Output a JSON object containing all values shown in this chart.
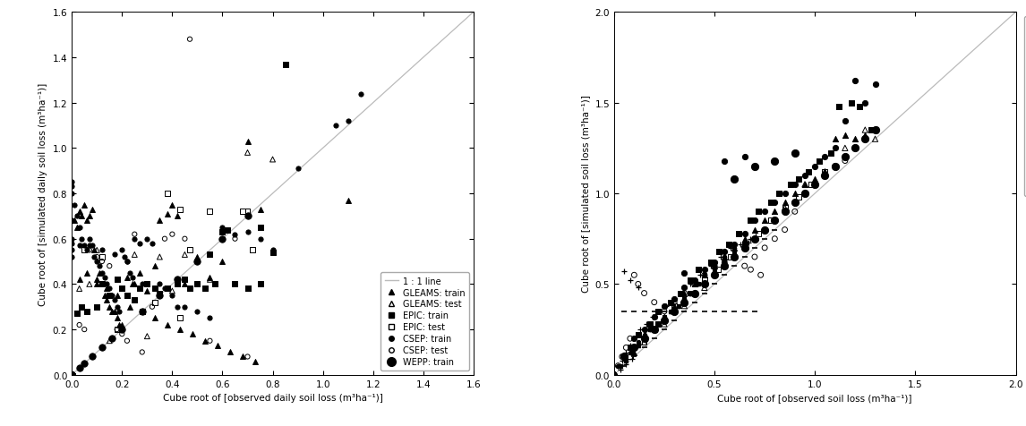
{
  "line_color": "#bbbbbb",
  "marker_color": "black",
  "bg_color": "white",
  "font_size": 7.5,
  "panel_a": {
    "xlabel": "Cube root of [observed daily soil loss (m³ha⁻¹)]",
    "ylabel": "Cube root of [simulated daily soil loss (m³ha⁻¹)]",
    "xlim": [
      0.0,
      1.6
    ],
    "ylim": [
      0.0,
      1.6
    ],
    "xticks": [
      0.0,
      0.2,
      0.4,
      0.6,
      0.8,
      1.0,
      1.2,
      1.4,
      1.6
    ],
    "yticks": [
      0.0,
      0.2,
      0.4,
      0.6,
      0.8,
      1.0,
      1.2,
      1.4,
      1.6
    ],
    "WEPP_train": {
      "x": [
        0.0,
        0.0,
        0.0,
        0.0,
        0.0,
        0.0,
        0.0,
        0.0,
        0.0,
        0.0,
        0.0,
        0.0,
        0.0,
        0.0,
        0.0,
        0.0,
        0.0,
        0.0,
        0.0,
        0.0,
        0.0,
        0.0,
        0.0,
        0.0,
        0.0,
        0.0,
        0.0,
        0.0,
        0.0,
        0.0,
        0.0,
        0.0,
        0.0,
        0.0,
        0.0,
        0.0,
        0.0,
        0.0,
        0.0,
        0.0,
        0.0,
        0.0,
        0.0,
        0.0,
        0.0,
        0.0,
        0.0,
        0.0,
        0.03,
        0.05,
        0.08,
        0.12,
        0.16,
        0.2,
        0.28,
        0.35,
        0.42,
        0.5,
        0.6,
        0.7
      ],
      "y": [
        0.0,
        0.0,
        0.0,
        0.0,
        0.0,
        0.0,
        0.0,
        0.0,
        0.0,
        0.0,
        0.0,
        0.0,
        0.0,
        0.0,
        0.0,
        0.0,
        0.0,
        0.0,
        0.0,
        0.0,
        0.0,
        0.0,
        0.0,
        0.0,
        0.0,
        0.0,
        0.0,
        0.0,
        0.0,
        0.0,
        0.0,
        0.0,
        0.0,
        0.0,
        0.0,
        0.0,
        0.0,
        0.0,
        0.0,
        0.0,
        0.0,
        0.0,
        0.0,
        0.0,
        0.0,
        0.0,
        0.0,
        0.0,
        0.03,
        0.05,
        0.08,
        0.12,
        0.16,
        0.2,
        0.28,
        0.35,
        0.42,
        0.5,
        0.6,
        0.7
      ]
    },
    "EPIC_train": {
      "x": [
        0.0,
        0.0,
        0.0,
        0.0,
        0.0,
        0.0,
        0.0,
        0.0,
        0.0,
        0.0,
        0.0,
        0.0,
        0.0,
        0.0,
        0.0,
        0.0,
        0.0,
        0.0,
        0.0,
        0.0,
        0.0,
        0.0,
        0.0,
        0.0,
        0.0,
        0.0,
        0.0,
        0.0,
        0.0,
        0.0,
        0.0,
        0.0,
        0.0,
        0.0,
        0.0,
        0.0,
        0.0,
        0.0,
        0.0,
        0.0,
        0.0,
        0.0,
        0.02,
        0.04,
        0.06,
        0.1,
        0.12,
        0.15,
        0.18,
        0.2,
        0.22,
        0.25,
        0.27,
        0.3,
        0.33,
        0.35,
        0.38,
        0.42,
        0.45,
        0.47,
        0.5,
        0.53,
        0.57,
        0.6,
        0.65,
        0.7,
        0.75,
        0.8,
        0.85,
        0.75,
        0.55,
        0.62,
        0.7
      ],
      "y": [
        0.0,
        0.0,
        0.0,
        0.0,
        0.0,
        0.0,
        0.0,
        0.0,
        0.0,
        0.0,
        0.0,
        0.0,
        0.0,
        0.0,
        0.0,
        0.0,
        0.0,
        0.0,
        0.0,
        0.0,
        0.0,
        0.0,
        0.0,
        0.0,
        0.0,
        0.0,
        0.0,
        0.0,
        0.0,
        0.0,
        0.0,
        0.0,
        0.0,
        0.0,
        0.0,
        0.0,
        0.0,
        0.0,
        0.0,
        0.0,
        0.0,
        0.0,
        0.27,
        0.3,
        0.28,
        0.3,
        0.4,
        0.35,
        0.42,
        0.38,
        0.35,
        0.33,
        0.38,
        0.4,
        0.38,
        0.36,
        0.38,
        0.4,
        0.42,
        0.38,
        0.4,
        0.38,
        0.4,
        0.63,
        0.4,
        0.38,
        0.4,
        0.54,
        1.37,
        0.65,
        0.53,
        0.64,
        0.38
      ]
    },
    "EPIC_test": {
      "x": [
        0.05,
        0.12,
        0.18,
        0.22,
        0.28,
        0.33,
        0.38,
        0.43,
        0.47,
        0.55,
        0.68,
        0.72,
        0.43,
        0.7
      ],
      "y": [
        0.55,
        0.52,
        0.2,
        0.35,
        0.28,
        0.32,
        0.8,
        0.73,
        0.55,
        0.72,
        0.72,
        0.55,
        0.25,
        0.72
      ]
    },
    "CSEP_train": {
      "x": [
        0.0,
        0.0,
        0.0,
        0.0,
        0.0,
        0.0,
        0.0,
        0.0,
        0.01,
        0.02,
        0.03,
        0.04,
        0.05,
        0.06,
        0.07,
        0.08,
        0.09,
        0.1,
        0.11,
        0.12,
        0.13,
        0.14,
        0.15,
        0.16,
        0.17,
        0.18,
        0.19,
        0.2,
        0.21,
        0.22,
        0.23,
        0.24,
        0.25,
        0.27,
        0.28,
        0.3,
        0.32,
        0.35,
        0.37,
        0.4,
        0.42,
        0.45,
        0.5,
        0.55,
        0.6,
        0.65,
        0.7,
        0.75,
        0.8,
        0.9,
        1.05,
        1.1,
        1.15,
        0.03,
        0.07,
        0.12,
        0.17,
        0.22
      ],
      "y": [
        0.85,
        0.83,
        0.8,
        0.68,
        0.6,
        0.58,
        0.55,
        0.52,
        0.75,
        0.7,
        0.65,
        0.6,
        0.57,
        0.55,
        0.6,
        0.57,
        0.52,
        0.5,
        0.48,
        0.45,
        0.43,
        0.4,
        0.38,
        0.35,
        0.33,
        0.3,
        0.28,
        0.55,
        0.52,
        0.5,
        0.45,
        0.43,
        0.6,
        0.58,
        0.4,
        0.6,
        0.58,
        0.4,
        0.38,
        0.35,
        0.3,
        0.3,
        0.28,
        0.25,
        0.65,
        0.62,
        0.63,
        0.6,
        0.55,
        0.91,
        1.1,
        1.12,
        1.24,
        0.57,
        0.57,
        0.55,
        0.53,
        0.5
      ]
    },
    "CSEP_test": {
      "x": [
        0.03,
        0.05,
        0.07,
        0.1,
        0.12,
        0.15,
        0.18,
        0.2,
        0.22,
        0.25,
        0.28,
        0.32,
        0.37,
        0.4,
        0.45,
        0.47,
        0.55,
        0.6,
        0.65,
        0.7
      ],
      "y": [
        0.22,
        0.2,
        0.55,
        0.52,
        0.5,
        0.48,
        0.2,
        0.18,
        0.15,
        0.62,
        0.1,
        0.3,
        0.6,
        0.62,
        0.6,
        1.48,
        0.15,
        0.63,
        0.6,
        0.08
      ]
    },
    "GLEAMS_train": {
      "x": [
        0.01,
        0.02,
        0.03,
        0.04,
        0.05,
        0.06,
        0.07,
        0.08,
        0.09,
        0.1,
        0.11,
        0.12,
        0.13,
        0.14,
        0.15,
        0.16,
        0.17,
        0.18,
        0.19,
        0.2,
        0.22,
        0.24,
        0.25,
        0.27,
        0.3,
        0.33,
        0.35,
        0.38,
        0.4,
        0.42,
        0.45,
        0.5,
        0.55,
        0.6,
        0.7,
        0.75,
        1.1,
        0.03,
        0.06,
        0.1,
        0.14,
        0.18,
        0.23,
        0.28,
        0.33,
        0.38,
        0.43,
        0.48,
        0.53,
        0.58,
        0.63,
        0.68,
        0.73
      ],
      "y": [
        0.68,
        0.65,
        0.72,
        0.7,
        0.75,
        0.68,
        0.7,
        0.73,
        0.55,
        0.42,
        0.45,
        0.4,
        0.35,
        0.33,
        0.3,
        0.28,
        0.28,
        0.25,
        0.22,
        0.22,
        0.43,
        0.4,
        0.4,
        0.45,
        0.37,
        0.48,
        0.68,
        0.71,
        0.75,
        0.7,
        0.4,
        0.52,
        0.43,
        0.5,
        1.03,
        0.73,
        0.77,
        0.42,
        0.45,
        0.4,
        0.38,
        0.35,
        0.3,
        0.28,
        0.25,
        0.22,
        0.2,
        0.18,
        0.15,
        0.13,
        0.1,
        0.08,
        0.06
      ]
    },
    "GLEAMS_test": {
      "x": [
        0.03,
        0.07,
        0.1,
        0.15,
        0.2,
        0.25,
        0.3,
        0.35,
        0.4,
        0.45,
        0.55,
        0.7,
        0.8
      ],
      "y": [
        0.38,
        0.4,
        0.55,
        0.15,
        0.38,
        0.53,
        0.17,
        0.52,
        0.37,
        0.53,
        0.42,
        0.98,
        0.95
      ]
    }
  },
  "panel_b": {
    "xlabel": "Cube root of [observed soil loss (m³ha⁻¹)]",
    "ylabel": "Cube root of [simulated soil loss (m³ha⁻¹)]",
    "xlim": [
      0.0,
      2.0
    ],
    "ylim": [
      0.0,
      2.0
    ],
    "xticks": [
      0.0,
      0.5,
      1.0,
      1.5,
      2.0
    ],
    "yticks": [
      0.0,
      0.5,
      1.0,
      1.5,
      2.0
    ],
    "GLEAMS_yearly_train": {
      "x": [
        0.1,
        0.15,
        0.2,
        0.25,
        0.3,
        0.35,
        0.4,
        0.45,
        0.5,
        0.55,
        0.6,
        0.65,
        0.7,
        0.75,
        0.8,
        0.85,
        0.9,
        0.95,
        1.0,
        1.05,
        1.1,
        1.15,
        1.2,
        1.25,
        1.3
      ],
      "y": [
        0.12,
        0.2,
        0.25,
        0.32,
        0.38,
        0.45,
        0.5,
        0.55,
        0.6,
        0.65,
        0.7,
        0.75,
        0.8,
        0.85,
        0.9,
        0.95,
        1.0,
        1.05,
        1.08,
        1.12,
        1.3,
        1.32,
        1.3,
        1.32,
        1.35
      ]
    },
    "GLEAMS_yearly_test": {
      "x": [
        0.15,
        0.25,
        0.35,
        0.45,
        0.55,
        0.65,
        0.75,
        0.85,
        0.95,
        1.05,
        1.15,
        1.25,
        1.3
      ],
      "y": [
        0.18,
        0.28,
        0.38,
        0.48,
        0.6,
        0.72,
        0.8,
        0.92,
        1.05,
        1.12,
        1.25,
        1.35,
        1.3
      ]
    },
    "GLEAMS_monthly_train": {
      "x": [
        0.03,
        0.06,
        0.09,
        0.12,
        0.15,
        0.18,
        0.22,
        0.25,
        0.28,
        0.32,
        0.35,
        0.38,
        0.42,
        0.45,
        0.5,
        0.55,
        0.6,
        0.65,
        0.7,
        0.75,
        0.8,
        0.85,
        0.9,
        0.95,
        1.0,
        1.05,
        1.1,
        1.15,
        1.2
      ],
      "y": [
        0.05,
        0.08,
        0.12,
        0.16,
        0.2,
        0.25,
        0.28,
        0.32,
        0.35,
        0.38,
        0.42,
        0.45,
        0.5,
        0.55,
        0.58,
        0.63,
        0.68,
        0.72,
        0.75,
        0.8,
        0.85,
        0.9,
        0.95,
        1.0,
        1.05,
        1.1,
        1.15,
        1.2,
        1.25
      ]
    },
    "GLEAMS_monthly_test": {
      "x": [
        0.05,
        0.1,
        0.15,
        0.2,
        0.25,
        0.3,
        0.35,
        0.4,
        0.45,
        0.5,
        0.55,
        0.6,
        0.65,
        0.7,
        0.75,
        0.8
      ],
      "y": [
        0.05,
        0.1,
        0.15,
        0.2,
        0.25,
        0.3,
        0.35,
        0.4,
        0.45,
        0.5,
        0.55,
        0.6,
        0.65,
        0.7,
        0.75,
        0.8
      ]
    },
    "EPIC_yearly_train": {
      "x": [
        0.08,
        0.12,
        0.18,
        0.22,
        0.28,
        0.33,
        0.38,
        0.42,
        0.48,
        0.52,
        0.57,
        0.62,
        0.68,
        0.72,
        0.78,
        0.82,
        0.88,
        0.92,
        0.97,
        1.02,
        1.08,
        1.12,
        1.18,
        1.22,
        1.28
      ],
      "y": [
        0.15,
        0.22,
        0.28,
        0.35,
        0.4,
        0.45,
        0.52,
        0.58,
        0.62,
        0.68,
        0.72,
        0.78,
        0.85,
        0.9,
        0.95,
        1.0,
        1.05,
        1.08,
        1.12,
        1.18,
        1.22,
        1.48,
        1.5,
        1.48,
        1.35
      ]
    },
    "EPIC_yearly_test": {
      "x": [
        0.08,
        0.15,
        0.22,
        0.3,
        0.38,
        0.45,
        0.52,
        0.58,
        0.65,
        0.72,
        0.78,
        0.85,
        0.92,
        0.98,
        1.05
      ],
      "y": [
        0.1,
        0.18,
        0.28,
        0.38,
        0.45,
        0.52,
        0.58,
        0.65,
        0.72,
        0.78,
        0.85,
        0.92,
        0.98,
        1.05,
        1.12
      ]
    },
    "EPIC_monthly_train": {
      "x": [
        0.0,
        0.0,
        0.0,
        0.0,
        0.0,
        0.03,
        0.06,
        0.09,
        0.12,
        0.15,
        0.18,
        0.22,
        0.25,
        0.28,
        0.32,
        0.35,
        0.38,
        0.42,
        0.45,
        0.5,
        0.55,
        0.6,
        0.65,
        0.7,
        0.75,
        0.8,
        0.85,
        0.9,
        0.95,
        1.0
      ],
      "y": [
        0.0,
        0.0,
        0.0,
        0.0,
        0.0,
        0.05,
        0.08,
        0.12,
        0.16,
        0.2,
        0.25,
        0.28,
        0.32,
        0.35,
        0.38,
        0.42,
        0.45,
        0.5,
        0.55,
        0.58,
        0.63,
        0.68,
        0.72,
        0.75,
        0.8,
        0.85,
        0.9,
        0.95,
        1.0,
        1.05
      ]
    },
    "EPIC_monthly_test": {
      "x": [
        0.05,
        0.1,
        0.15,
        0.2,
        0.25,
        0.3,
        0.35,
        0.4,
        0.45,
        0.5,
        0.55,
        0.6,
        0.65,
        0.7
      ],
      "y": [
        0.35,
        0.35,
        0.35,
        0.35,
        0.35,
        0.35,
        0.35,
        0.35,
        0.35,
        0.35,
        0.35,
        0.35,
        0.35,
        0.35
      ]
    },
    "CSEP_yearly_train": {
      "x": [
        0.05,
        0.1,
        0.15,
        0.2,
        0.25,
        0.3,
        0.35,
        0.4,
        0.45,
        0.5,
        0.55,
        0.6,
        0.65,
        0.7,
        0.75,
        0.8,
        0.85,
        0.9,
        0.95,
        1.0,
        1.05,
        1.1,
        1.15,
        1.2,
        1.25,
        1.3,
        0.35,
        0.55,
        0.65
      ],
      "y": [
        0.1,
        0.2,
        0.25,
        0.32,
        0.38,
        0.42,
        0.48,
        0.52,
        0.58,
        0.62,
        0.68,
        0.72,
        0.78,
        0.85,
        0.9,
        0.95,
        1.0,
        1.05,
        1.1,
        1.15,
        1.2,
        1.25,
        1.4,
        1.62,
        1.5,
        1.6,
        0.56,
        1.18,
        1.2
      ]
    },
    "CSEP_yearly_test": {
      "x": [
        0.0,
        0.0,
        0.0,
        0.0,
        0.0,
        0.0,
        0.0,
        0.0,
        0.0,
        0.0,
        0.0,
        0.02,
        0.04,
        0.06,
        0.08,
        0.1,
        0.12,
        0.15,
        0.2,
        0.25,
        0.3,
        0.35,
        0.4,
        0.45,
        0.5,
        0.55,
        0.6,
        0.65,
        0.7,
        0.75,
        0.8,
        0.85,
        0.9,
        0.95,
        1.0,
        1.05,
        1.1,
        1.15,
        0.68,
        0.73
      ],
      "y": [
        0.0,
        0.0,
        0.0,
        0.0,
        0.0,
        0.0,
        0.0,
        0.0,
        0.0,
        0.0,
        0.0,
        0.05,
        0.1,
        0.15,
        0.2,
        0.55,
        0.5,
        0.45,
        0.4,
        0.35,
        0.4,
        0.45,
        0.5,
        0.55,
        0.6,
        0.62,
        0.65,
        0.6,
        0.65,
        0.7,
        0.75,
        0.8,
        0.9,
        1.0,
        1.05,
        1.1,
        1.15,
        1.18,
        0.58,
        0.55
      ]
    },
    "CSEP_monthly_train": {
      "x": [
        0.0,
        0.0,
        0.0,
        0.0,
        0.02,
        0.05,
        0.08,
        0.12,
        0.15,
        0.18,
        0.22,
        0.25,
        0.28,
        0.32,
        0.35,
        0.38,
        0.42,
        0.45,
        0.5,
        0.55,
        0.6,
        0.65,
        0.7,
        0.75,
        0.8,
        0.85,
        0.9
      ],
      "y": [
        0.0,
        0.0,
        0.0,
        0.0,
        0.05,
        0.1,
        0.12,
        0.18,
        0.22,
        0.25,
        0.28,
        0.32,
        0.35,
        0.38,
        0.42,
        0.45,
        0.5,
        0.55,
        0.6,
        0.65,
        0.7,
        0.72,
        0.75,
        0.8,
        0.85,
        0.9,
        0.95
      ]
    },
    "CSEP_monthly_test": {
      "x": [
        0.02,
        0.04,
        0.06,
        0.08,
        0.1,
        0.13,
        0.16,
        0.19,
        0.22,
        0.26,
        0.3,
        0.34,
        0.38,
        0.43,
        0.48,
        0.53,
        0.58,
        0.63,
        0.68,
        0.05,
        0.08,
        0.12,
        0.03,
        0.06,
        0.09,
        0.67
      ],
      "y": [
        0.05,
        0.08,
        0.12,
        0.16,
        0.2,
        0.25,
        0.28,
        0.32,
        0.35,
        0.38,
        0.42,
        0.45,
        0.5,
        0.55,
        0.6,
        0.65,
        0.7,
        0.72,
        0.75,
        0.57,
        0.52,
        0.48,
        0.03,
        0.06,
        0.09,
        0.73
      ]
    },
    "WEPP_yearly_train": {
      "x": [
        0.05,
        0.1,
        0.15,
        0.2,
        0.25,
        0.3,
        0.35,
        0.4,
        0.45,
        0.5,
        0.55,
        0.6,
        0.65,
        0.7,
        0.75,
        0.8,
        0.85,
        0.9,
        0.95,
        1.0,
        1.05,
        1.1,
        1.15,
        1.2,
        1.25,
        1.3,
        0.6,
        0.7,
        0.8,
        0.9
      ],
      "y": [
        0.1,
        0.15,
        0.2,
        0.25,
        0.3,
        0.35,
        0.4,
        0.45,
        0.5,
        0.55,
        0.6,
        0.65,
        0.7,
        0.75,
        0.8,
        0.85,
        0.9,
        0.95,
        1.0,
        1.05,
        1.1,
        1.15,
        1.2,
        1.25,
        1.3,
        1.35,
        1.08,
        1.15,
        1.18,
        1.22
      ]
    },
    "WEPP_monthly_train": {
      "x": [
        0.0,
        0.0,
        0.0,
        0.0,
        0.0,
        0.03,
        0.06,
        0.09,
        0.12,
        0.15,
        0.18,
        0.22,
        0.25,
        0.28,
        0.32,
        0.35,
        0.38,
        0.42,
        0.45,
        0.5,
        0.55,
        0.6
      ],
      "y": [
        0.0,
        0.0,
        0.0,
        0.0,
        0.0,
        0.05,
        0.08,
        0.12,
        0.16,
        0.2,
        0.25,
        0.28,
        0.32,
        0.35,
        0.38,
        0.42,
        0.45,
        0.5,
        0.55,
        0.6,
        0.65,
        0.7
      ]
    }
  }
}
